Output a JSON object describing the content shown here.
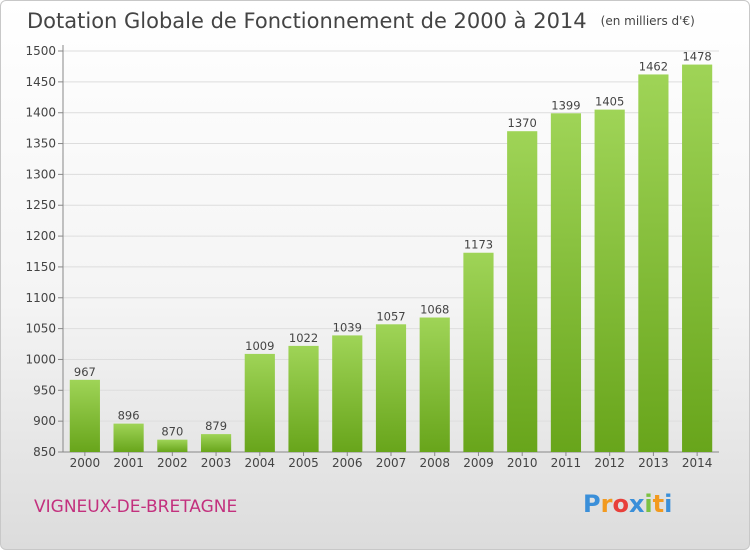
{
  "title": "Dotation Globale de Fonctionnement de 2000 à 2014",
  "unit": "(en milliers d'€)",
  "commune": "VIGNEUX-DE-BRETAGNE",
  "logo": {
    "letters": [
      "P",
      "r",
      "o",
      "x",
      "i",
      "t",
      "i"
    ],
    "colors": [
      "#3a8fd9",
      "#f29a1f",
      "#e8403a",
      "#3a8fd9",
      "#7cc142",
      "#f29a1f",
      "#3a8fd9"
    ]
  },
  "colors": {
    "bar_top": "#9fd457",
    "bar_bottom": "#68a51b",
    "grid": "#dddddd",
    "axis_text": "#444444",
    "commune": "#c3307e"
  },
  "chart_data": {
    "type": "bar",
    "categories": [
      "2000",
      "2001",
      "2002",
      "2003",
      "2004",
      "2005",
      "2006",
      "2007",
      "2008",
      "2009",
      "2010",
      "2011",
      "2012",
      "2013",
      "2014"
    ],
    "values": [
      967,
      896,
      870,
      879,
      1009,
      1022,
      1039,
      1057,
      1068,
      1173,
      1370,
      1399,
      1405,
      1462,
      1478
    ],
    "title": "Dotation Globale de Fonctionnement de 2000 à 2014",
    "xlabel": "",
    "ylabel": "",
    "ylim": [
      850,
      1500
    ],
    "yticks": [
      850,
      900,
      950,
      1000,
      1050,
      1100,
      1150,
      1200,
      1250,
      1300,
      1350,
      1400,
      1450,
      1500
    ],
    "grid": true,
    "legend": "none"
  }
}
